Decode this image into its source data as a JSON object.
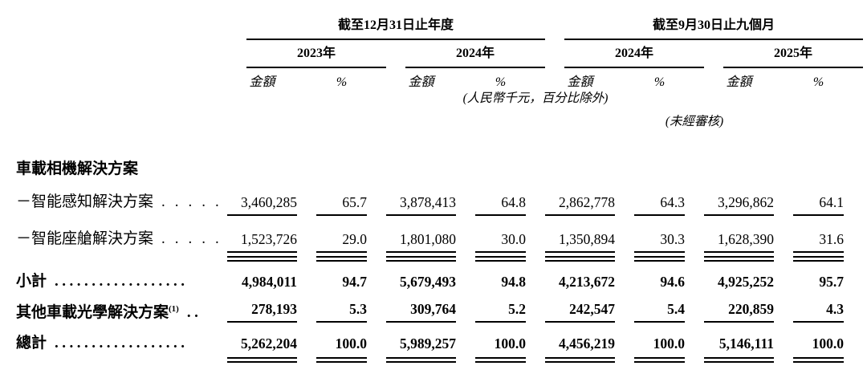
{
  "document": {
    "colors": {
      "text": "#000000",
      "background": "#ffffff",
      "rule": "#000000"
    },
    "period_groups": [
      {
        "title": "截至12月31日止年度",
        "years": [
          "2023年",
          "2024年"
        ]
      },
      {
        "title": "截至9月30日止九個月",
        "years": [
          "2024年",
          "2025年"
        ]
      }
    ],
    "column_headers": {
      "amount": "金額",
      "percent": "%"
    },
    "notes": {
      "units": "(人民幣千元，百分比除外)",
      "unaudited": "(未經審核)"
    },
    "section_header": "車載相機解決方案",
    "rows": [
      {
        "label": "－智能感知解決方案",
        "dots": ".....",
        "values": [
          "3,460,285",
          "65.7",
          "3,878,413",
          "64.8",
          "2,862,778",
          "64.3",
          "3,296,862",
          "64.1"
        ]
      },
      {
        "label": "－智能座艙解決方案",
        "dots": ".....",
        "values": [
          "1,523,726",
          "29.0",
          "1,801,080",
          "30.0",
          "1,350,894",
          "30.3",
          "1,628,390",
          "31.6"
        ]
      },
      {
        "label": "小計",
        "dots": "..................",
        "values": [
          "4,984,011",
          "94.7",
          "5,679,493",
          "94.8",
          "4,213,672",
          "94.6",
          "4,925,252",
          "95.7"
        ]
      },
      {
        "label": "其他車載光學解決方案",
        "footnote": "(1)",
        "dots": "..",
        "values": [
          "278,193",
          "5.3",
          "309,764",
          "5.2",
          "242,547",
          "5.4",
          "220,859",
          "4.3"
        ]
      },
      {
        "label": "總計",
        "dots": "..................",
        "values": [
          "5,262,204",
          "100.0",
          "5,989,257",
          "100.0",
          "4,456,219",
          "100.0",
          "5,146,111",
          "100.0"
        ]
      }
    ]
  }
}
